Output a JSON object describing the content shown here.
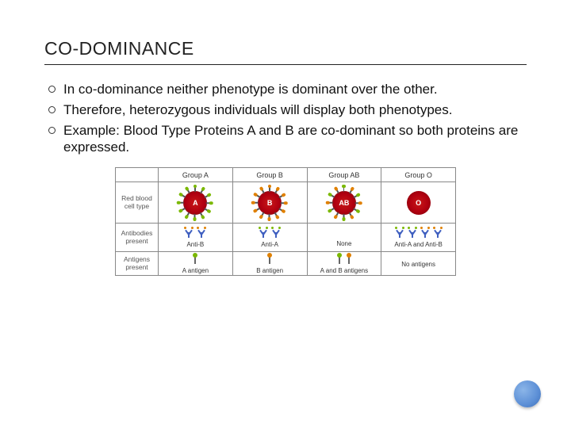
{
  "title_html": "C<span style='font-size:19px'>O</span>-<span style='font-size:19px'>DOMINANCE</span>",
  "title_plain": "CO-DOMINANCE",
  "bullets": [
    "In co-dominance neither phenotype is dominant over the other.",
    "Therefore, heterozygous individuals will display both phenotypes.",
    "Example: Blood Type Proteins A and B are co-dominant so both proteins are expressed."
  ],
  "table": {
    "col_headers": [
      "Group A",
      "Group B",
      "Group AB",
      "Group O"
    ],
    "row_labels": [
      "Red blood cell type",
      "Antibodies present",
      "Antigens present"
    ],
    "cells": {
      "letters": [
        "A",
        "B",
        "AB",
        "O"
      ],
      "spike_colors": [
        [
          "green"
        ],
        [
          "orange"
        ],
        [
          "green",
          "orange"
        ],
        []
      ]
    },
    "antibodies": {
      "labels": [
        "Anti-B",
        "Anti-A",
        "None",
        "Anti-A and Anti-B"
      ],
      "sets": [
        [
          "orange"
        ],
        [
          "green"
        ],
        [],
        [
          "green",
          "orange"
        ]
      ]
    },
    "antigens": {
      "labels": [
        "A antigen",
        "B antigen",
        "A and B antigens",
        "No antigens"
      ],
      "sets": [
        [
          "green"
        ],
        [
          "orange"
        ],
        [
          "green",
          "orange"
        ],
        []
      ]
    }
  },
  "colors": {
    "cell_red": "#b00010",
    "antigen_green": "#7ab800",
    "antigen_orange": "#e08000",
    "antibody_blue": "#4060c0",
    "border_gray": "#888888",
    "decor_blue": "#5c8fd6"
  }
}
